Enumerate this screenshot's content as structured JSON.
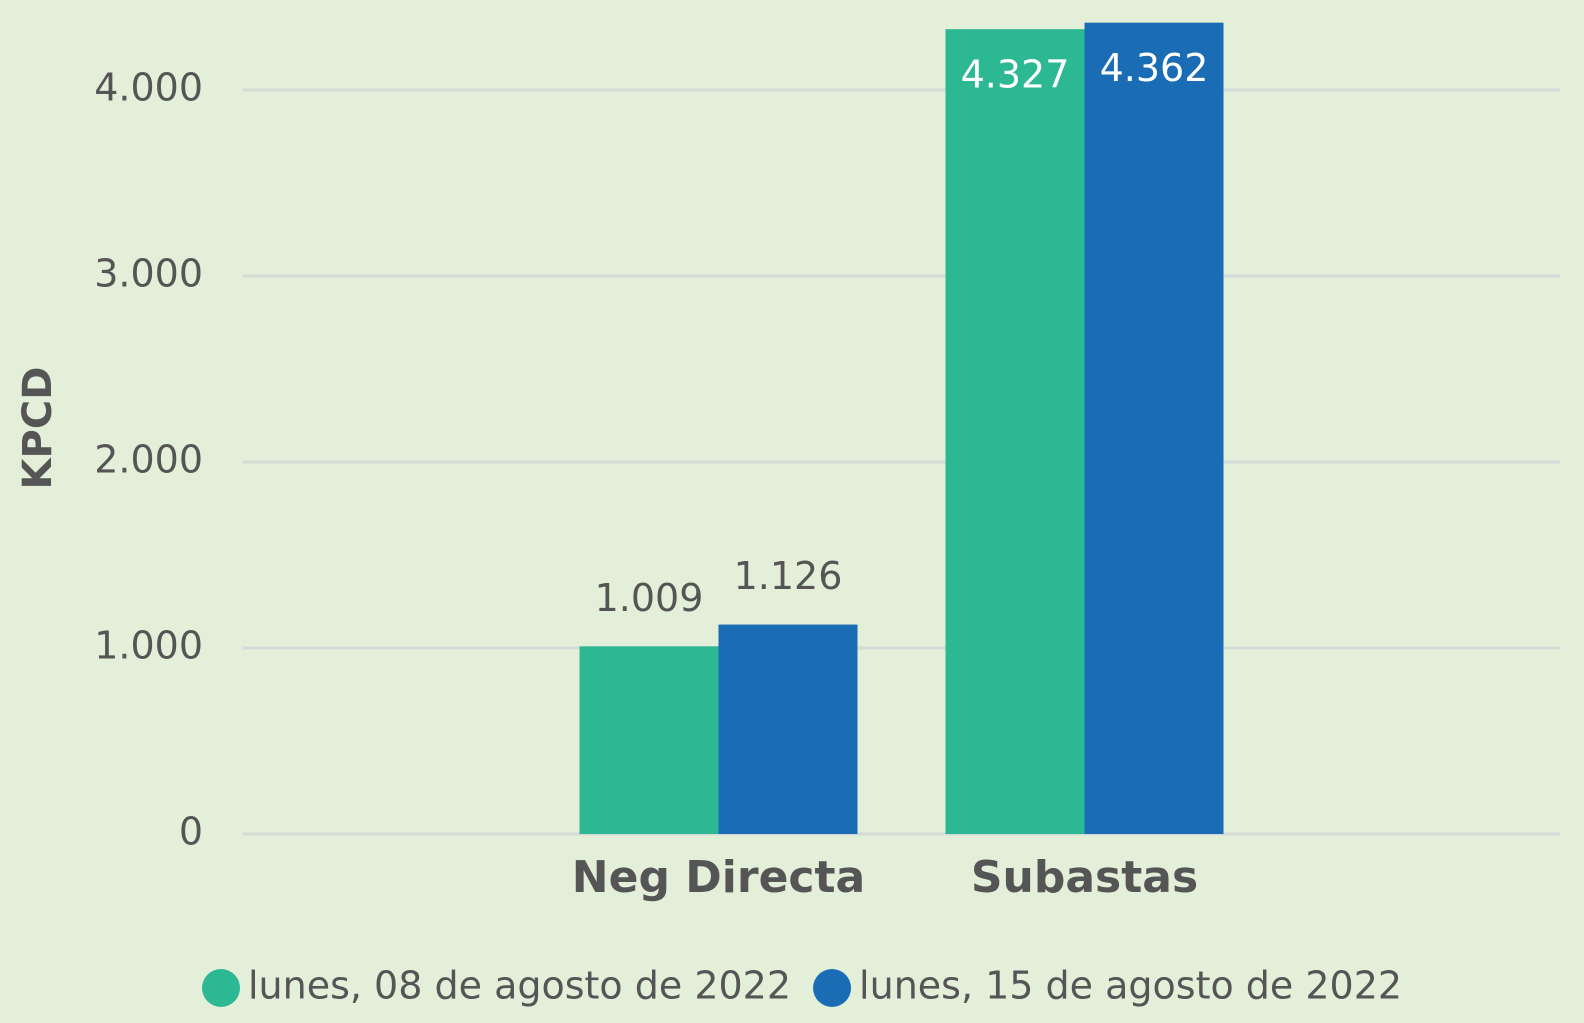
{
  "chart_data": {
    "type": "bar",
    "y_label": "KPCD",
    "categories": [
      "Neg Directa",
      "Subastas"
    ],
    "series": [
      {
        "name": "lunes, 08 de agosto de 2022",
        "color": "#2db894",
        "values": [
          1009,
          4327
        ],
        "value_labels": [
          "1.009",
          "4.327"
        ]
      },
      {
        "name": "lunes, 15 de agosto de 2022",
        "color": "#1a6cb5",
        "values": [
          1126,
          4362
        ],
        "value_labels": [
          "1.126",
          "4.362"
        ]
      }
    ],
    "ylim": [
      0,
      4000
    ],
    "yticks": [
      0,
      {
        "value": 1000,
        "label": "1.000"
      },
      {
        "value": 2000,
        "label": "2.000"
      },
      {
        "value": 3000,
        "label": "3.000"
      },
      {
        "value": 4000,
        "label": "4.000"
      }
    ],
    "grid": true,
    "legend": "bottom"
  }
}
